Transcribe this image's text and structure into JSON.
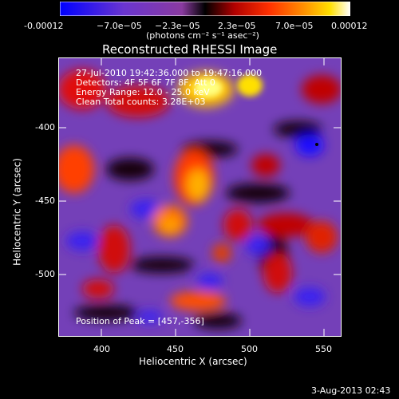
{
  "colorbar": {
    "labels": [
      "-0.00012",
      "−7.0e−05",
      "−2.3e−05",
      "2.3e−05",
      "7.0e−05",
      "0.00012"
    ],
    "units": "(photons cm⁻² s⁻¹ asec⁻²)"
  },
  "image": {
    "title": "Reconstructed RHESSI Image",
    "info_lines": [
      "27-Jul-2010 19:42:36.000 to 19:47:16.000",
      "Detectors: 4F 5F 6F 7F 8F, Att 0",
      "Energy Range: 12.0 - 25.0 keV",
      "Clean     Total counts: 3.28E+03"
    ],
    "peak_text": "Position of Peak = [457,-356]",
    "xlabel": "Heliocentric X (arcsec)",
    "ylabel": "Heliocentric Y (arcsec)",
    "x_ticks": [
      "400",
      "450",
      "500",
      "550"
    ],
    "y_ticks": [
      "-400",
      "-450",
      "-500"
    ],
    "x_range": [
      370,
      560
    ],
    "y_range": [
      -545,
      -355
    ]
  },
  "footer": {
    "timestamp": "3-Aug-2013 02:43"
  },
  "colors": {
    "background": "#000000",
    "foreground": "#ffffff",
    "colormap": [
      "#0000ff",
      "#7a3cc0",
      "#000000",
      "#c81010",
      "#ff7a00",
      "#ffd400",
      "#ffffff"
    ]
  }
}
